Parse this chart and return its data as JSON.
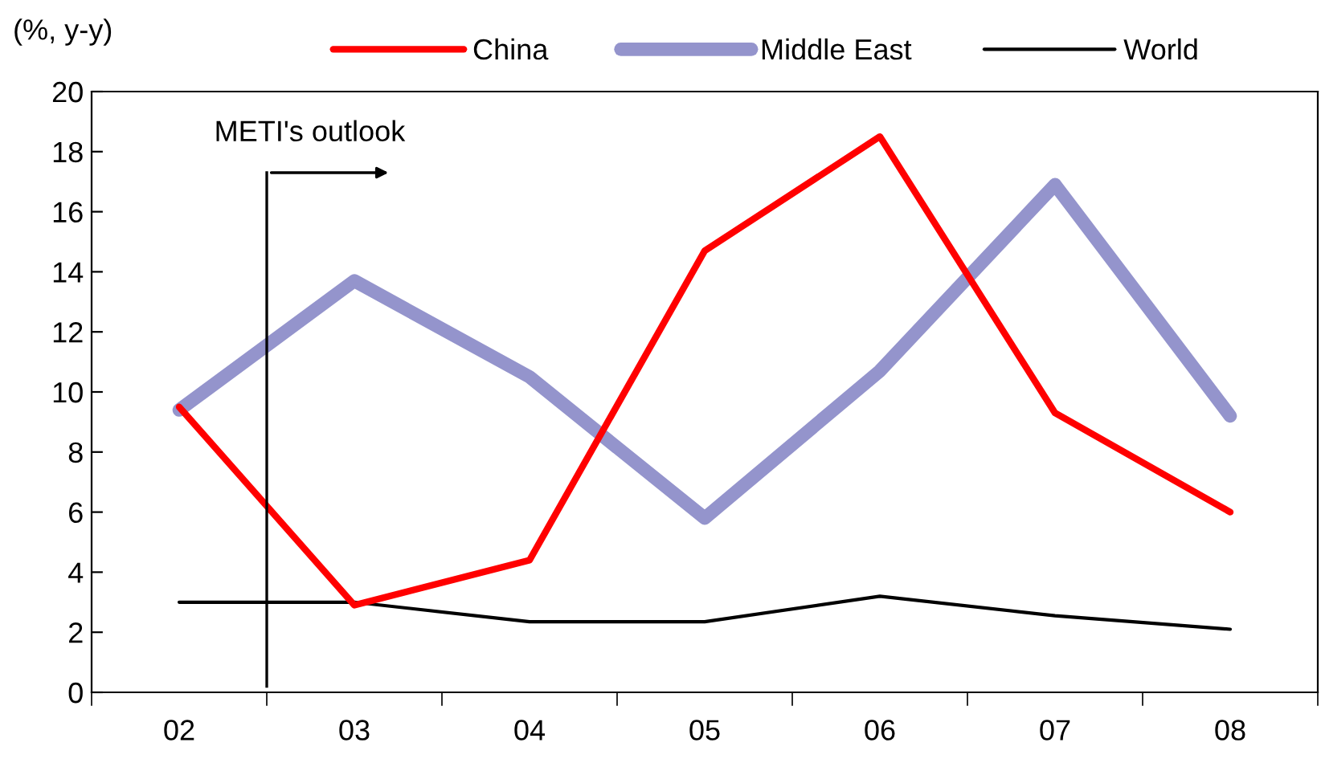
{
  "chart_data": {
    "type": "line",
    "ylabel": "(%, y-y)",
    "categories": [
      "02",
      "03",
      "04",
      "05",
      "06",
      "07",
      "08"
    ],
    "series": [
      {
        "name": "China",
        "color": "#ff0000",
        "values": [
          9.5,
          2.9,
          4.4,
          14.7,
          18.5,
          9.3,
          6.0
        ]
      },
      {
        "name": "Middle East",
        "color": "#9494cc",
        "values": [
          9.4,
          13.7,
          10.5,
          5.8,
          10.7,
          16.9,
          9.2
        ]
      },
      {
        "name": "World",
        "color": "#000000",
        "values": [
          3.0,
          3.0,
          2.35,
          2.35,
          3.2,
          2.55,
          2.1
        ]
      }
    ],
    "ylim": [
      0,
      20
    ],
    "yticks": [
      0,
      2,
      4,
      6,
      8,
      10,
      12,
      14,
      16,
      18,
      20
    ],
    "grid": false,
    "legend": "top",
    "marker": "none",
    "line_style": "solid",
    "annotations": [
      "METI's outlook"
    ]
  }
}
